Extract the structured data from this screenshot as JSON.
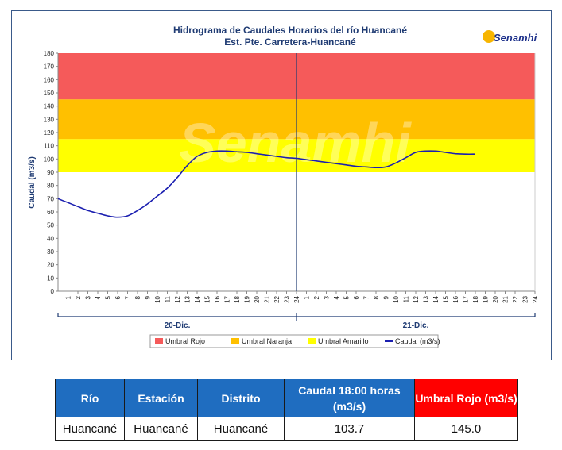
{
  "chart_data": {
    "type": "line",
    "title": "Hidrograma de Caudales Horarios del río Huancané",
    "subtitle": "Est. Pte. Carretera-Huancané",
    "ylabel": "Caudal (m3/s)",
    "ylim": [
      0,
      180
    ],
    "y_ticks": [
      "0",
      "10",
      "20",
      "30",
      "40",
      "50",
      "60",
      "70",
      "80",
      "90",
      "100",
      "110",
      "120",
      "130",
      "140",
      "150",
      "160",
      "170",
      "180"
    ],
    "x_tick_labels": [
      "1",
      "2",
      "3",
      "4",
      "5",
      "6",
      "7",
      "8",
      "9",
      "10",
      "11",
      "12",
      "13",
      "14",
      "15",
      "16",
      "17",
      "18",
      "19",
      "20",
      "21",
      "22",
      "23",
      "24",
      "1",
      "2",
      "3",
      "4",
      "5",
      "6",
      "7",
      "8",
      "9",
      "10",
      "11",
      "12",
      "13",
      "14",
      "15",
      "16",
      "17",
      "18",
      "19",
      "20",
      "21",
      "22",
      "23",
      "24"
    ],
    "days": [
      "20-Dic.",
      "21-Dic."
    ],
    "bands": [
      {
        "name": "Umbral Rojo",
        "from": 145,
        "to": 180,
        "color": "#f55a5a"
      },
      {
        "name": "Umbral Naranja",
        "from": 115,
        "to": 145,
        "color": "#ffc000"
      },
      {
        "name": "Umbral Amarillo",
        "from": 90,
        "to": 115,
        "color": "#ffff00"
      }
    ],
    "series": [
      {
        "name": "Caudal (m3/s)",
        "color": "#1b1fb0",
        "x": [
          0,
          1,
          2,
          3,
          4,
          5,
          6,
          7,
          8,
          9,
          10,
          11,
          12,
          13,
          14,
          15,
          16,
          17,
          18,
          19,
          20,
          21,
          22,
          23,
          24,
          25,
          26,
          27,
          28,
          29,
          30,
          31,
          32,
          33,
          34,
          35,
          36,
          37,
          38,
          39,
          40,
          41,
          42
        ],
        "values": [
          70,
          67,
          64,
          61,
          59,
          57,
          56,
          57,
          61,
          66,
          72,
          78,
          86,
          95,
          102,
          105,
          106,
          106,
          105.5,
          105,
          104,
          103,
          102,
          101,
          100.5,
          99.5,
          98.5,
          97.5,
          96.5,
          95.5,
          94.5,
          94,
          93.5,
          94,
          97,
          101,
          105,
          106,
          106,
          105,
          104,
          103.7,
          103.7
        ]
      }
    ],
    "legend": [
      "Umbral Rojo",
      "Umbral Naranja",
      "Umbral Amarillo",
      "Caudal (m3/s)"
    ],
    "legend_position": "bottom",
    "grid": false
  },
  "logo": {
    "text": "Senamhi"
  },
  "watermark": {
    "text": "Senamhi"
  },
  "table": {
    "headers": [
      "Río",
      "Estación",
      "Distrito",
      "Caudal  18:00 horas (m3/s)",
      "Umbral Rojo (m3/s)"
    ],
    "row": [
      "Huancané",
      "Huancané",
      "Huancané",
      "103.7",
      "145.0"
    ]
  }
}
